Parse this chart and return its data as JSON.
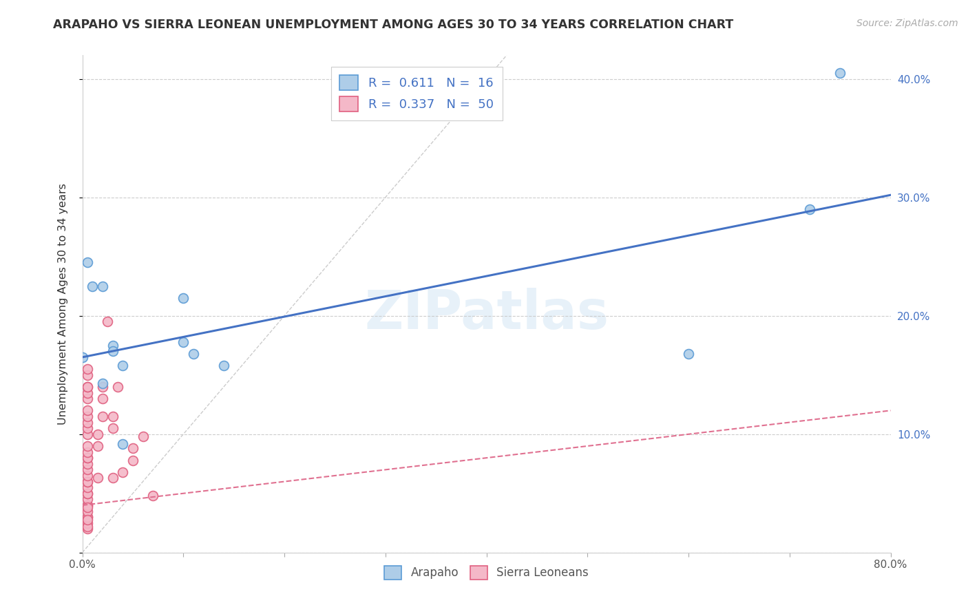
{
  "title": "ARAPAHO VS SIERRA LEONEAN UNEMPLOYMENT AMONG AGES 30 TO 34 YEARS CORRELATION CHART",
  "source": "Source: ZipAtlas.com",
  "ylabel": "Unemployment Among Ages 30 to 34 years",
  "xlim": [
    0,
    0.8
  ],
  "ylim": [
    0,
    0.42
  ],
  "xticks": [
    0.0,
    0.1,
    0.2,
    0.3,
    0.4,
    0.5,
    0.6,
    0.7,
    0.8
  ],
  "xticklabels_sparse": [
    "0.0%",
    "",
    "",
    "",
    "",
    "",
    "",
    "",
    "80.0%"
  ],
  "yticks": [
    0.0,
    0.1,
    0.2,
    0.3,
    0.4
  ],
  "right_yticks": [
    0.1,
    0.2,
    0.3,
    0.4
  ],
  "right_yticklabels": [
    "10.0%",
    "20.0%",
    "30.0%",
    "40.0%"
  ],
  "arapaho_color": "#aecde8",
  "arapaho_edge_color": "#5b9bd5",
  "sierra_color": "#f4b8c8",
  "sierra_edge_color": "#e06080",
  "blue_line_color": "#4472c4",
  "pink_line_color": "#e07090",
  "gray_line_color": "#cccccc",
  "R_arapaho": 0.611,
  "N_arapaho": 16,
  "R_sierra": 0.337,
  "N_sierra": 50,
  "arapaho_x": [
    0.005,
    0.01,
    0.02,
    0.03,
    0.1,
    0.03,
    0.1,
    0.04,
    0.11,
    0.6,
    0.72,
    0.75,
    0.02,
    0.04,
    0.14,
    0.0
  ],
  "arapaho_y": [
    0.245,
    0.225,
    0.225,
    0.175,
    0.215,
    0.17,
    0.178,
    0.158,
    0.168,
    0.168,
    0.29,
    0.405,
    0.143,
    0.092,
    0.158,
    0.165
  ],
  "sierra_x": [
    0.005,
    0.005,
    0.005,
    0.005,
    0.005,
    0.005,
    0.005,
    0.005,
    0.005,
    0.005,
    0.005,
    0.005,
    0.005,
    0.005,
    0.005,
    0.005,
    0.005,
    0.005,
    0.005,
    0.005,
    0.005,
    0.005,
    0.005,
    0.005,
    0.005,
    0.015,
    0.015,
    0.02,
    0.02,
    0.02,
    0.025,
    0.03,
    0.03,
    0.035,
    0.04,
    0.05,
    0.05,
    0.06,
    0.07,
    0.005,
    0.005,
    0.005,
    0.015,
    0.03,
    0.005,
    0.005,
    0.005,
    0.005,
    0.005,
    0.005
  ],
  "sierra_y": [
    0.02,
    0.025,
    0.03,
    0.03,
    0.035,
    0.04,
    0.04,
    0.045,
    0.05,
    0.05,
    0.055,
    0.06,
    0.06,
    0.065,
    0.07,
    0.075,
    0.08,
    0.08,
    0.085,
    0.09,
    0.1,
    0.105,
    0.11,
    0.115,
    0.12,
    0.09,
    0.1,
    0.115,
    0.13,
    0.14,
    0.195,
    0.105,
    0.115,
    0.14,
    0.068,
    0.078,
    0.088,
    0.098,
    0.048,
    0.13,
    0.135,
    0.14,
    0.063,
    0.063,
    0.14,
    0.15,
    0.155,
    0.022,
    0.028,
    0.038
  ],
  "watermark": "ZIPatlas",
  "marker_size": 100,
  "blue_line_y0": 0.165,
  "blue_line_y1": 0.302,
  "pink_line_y0": 0.04,
  "pink_line_y1": 0.12
}
